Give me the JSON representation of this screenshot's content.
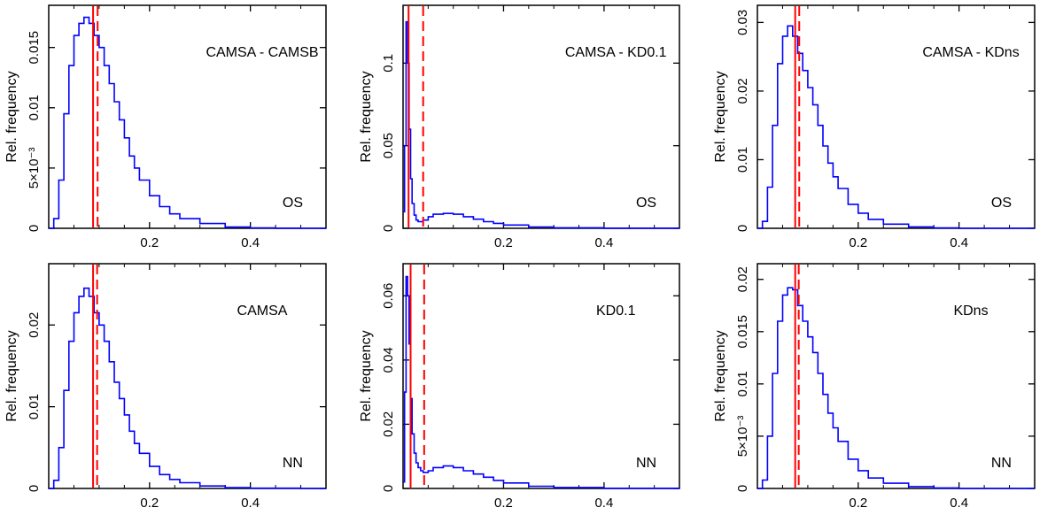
{
  "chart_data": [
    {
      "type": "line",
      "annotation": "CAMSA - CAMSB",
      "corner_label": "OS",
      "ylabel": "Rel. frequency",
      "xlim": [
        0,
        0.55
      ],
      "ylim": [
        0,
        0.0185
      ],
      "xticks": [
        0.2,
        0.4
      ],
      "xtick_labels": [
        "0.2",
        "0.4"
      ],
      "yticks": [
        0,
        0.005,
        0.01,
        0.015
      ],
      "ytick_labels": [
        "0",
        "5×10⁻³",
        "0.01",
        "0.015"
      ],
      "series": [
        {
          "x": [
            0,
            0.01,
            0.02,
            0.03,
            0.04,
            0.05,
            0.06,
            0.07,
            0.08,
            0.09,
            0.1,
            0.11,
            0.12,
            0.13,
            0.14,
            0.15,
            0.16,
            0.17,
            0.18,
            0.2,
            0.22,
            0.24,
            0.26,
            0.3,
            0.35,
            0.4,
            0.45,
            0.5,
            0.55
          ],
          "y": [
            0,
            0.0008,
            0.004,
            0.0095,
            0.0135,
            0.016,
            0.017,
            0.0175,
            0.017,
            0.016,
            0.015,
            0.0135,
            0.012,
            0.0105,
            0.009,
            0.0075,
            0.006,
            0.005,
            0.004,
            0.0027,
            0.0018,
            0.0012,
            0.0008,
            0.0004,
            0.0001,
            4e-05,
            1e-05,
            0,
            0
          ],
          "color": "#0000ff"
        }
      ],
      "vlines": [
        {
          "x": 0.088,
          "style": "solid",
          "color": "#ff0000"
        },
        {
          "x": 0.097,
          "style": "dashed",
          "color": "#ff0000"
        }
      ]
    },
    {
      "type": "line",
      "annotation": "CAMSA - KD0.1",
      "corner_label": "OS",
      "ylabel": "Rel. frequency",
      "xlim": [
        0,
        0.55
      ],
      "ylim": [
        0,
        0.135
      ],
      "xticks": [
        0.2,
        0.4
      ],
      "xtick_labels": [
        "0.2",
        "0.4"
      ],
      "yticks": [
        0,
        0.05,
        0.1
      ],
      "ytick_labels": [
        "0",
        "0.05",
        "0.1"
      ],
      "series": [
        {
          "x": [
            0,
            0.003,
            0.006,
            0.009,
            0.012,
            0.015,
            0.018,
            0.022,
            0.026,
            0.03,
            0.035,
            0.04,
            0.05,
            0.06,
            0.08,
            0.1,
            0.12,
            0.14,
            0.16,
            0.18,
            0.2,
            0.25,
            0.3,
            0.4,
            0.55
          ],
          "y": [
            0.01,
            0.05,
            0.125,
            0.1,
            0.06,
            0.03,
            0.015,
            0.008,
            0.005,
            0.004,
            0.004,
            0.005,
            0.007,
            0.0085,
            0.009,
            0.0085,
            0.007,
            0.0055,
            0.004,
            0.003,
            0.002,
            0.0008,
            0.0003,
            5e-05,
            0
          ],
          "color": "#0000ff"
        }
      ],
      "vlines": [
        {
          "x": 0.011,
          "style": "solid",
          "color": "#ff0000"
        },
        {
          "x": 0.04,
          "style": "dashed",
          "color": "#ff0000"
        }
      ]
    },
    {
      "type": "line",
      "annotation": "CAMSA - KDns",
      "corner_label": "OS",
      "ylabel": "Rel. frequency",
      "xlim": [
        0,
        0.55
      ],
      "ylim": [
        0,
        0.0325
      ],
      "xticks": [
        0.2,
        0.4
      ],
      "xtick_labels": [
        "0.2",
        "0.4"
      ],
      "yticks": [
        0,
        0.01,
        0.02,
        0.03
      ],
      "ytick_labels": [
        "0",
        "0.01",
        "0.02",
        "0.03"
      ],
      "series": [
        {
          "x": [
            0,
            0.01,
            0.02,
            0.03,
            0.04,
            0.05,
            0.06,
            0.07,
            0.08,
            0.09,
            0.1,
            0.11,
            0.12,
            0.13,
            0.14,
            0.15,
            0.16,
            0.18,
            0.2,
            0.22,
            0.25,
            0.3,
            0.35,
            0.4,
            0.55
          ],
          "y": [
            0,
            0.001,
            0.006,
            0.015,
            0.024,
            0.028,
            0.0295,
            0.028,
            0.0255,
            0.023,
            0.0205,
            0.018,
            0.015,
            0.012,
            0.0095,
            0.0075,
            0.0058,
            0.0035,
            0.0022,
            0.0013,
            0.0006,
            0.0002,
            5e-05,
            0,
            0
          ],
          "color": "#0000ff"
        }
      ],
      "vlines": [
        {
          "x": 0.075,
          "style": "solid",
          "color": "#ff0000"
        },
        {
          "x": 0.083,
          "style": "dashed",
          "color": "#ff0000"
        }
      ]
    },
    {
      "type": "line",
      "annotation": "CAMSA",
      "corner_label": "NN",
      "ylabel": "Rel. frequency",
      "xlim": [
        0,
        0.55
      ],
      "ylim": [
        0,
        0.0275
      ],
      "xticks": [
        0.2,
        0.4
      ],
      "xtick_labels": [
        "0.2",
        "0.4"
      ],
      "yticks": [
        0,
        0.01,
        0.02
      ],
      "ytick_labels": [
        "0",
        "0.01",
        "0.02"
      ],
      "series": [
        {
          "x": [
            0,
            0.01,
            0.02,
            0.03,
            0.04,
            0.05,
            0.06,
            0.07,
            0.08,
            0.09,
            0.1,
            0.11,
            0.12,
            0.13,
            0.14,
            0.15,
            0.16,
            0.17,
            0.18,
            0.2,
            0.22,
            0.24,
            0.26,
            0.3,
            0.35,
            0.4,
            0.5,
            0.55
          ],
          "y": [
            0,
            0.001,
            0.005,
            0.012,
            0.018,
            0.0215,
            0.0235,
            0.0245,
            0.0235,
            0.0215,
            0.02,
            0.018,
            0.0155,
            0.013,
            0.011,
            0.009,
            0.007,
            0.0055,
            0.0043,
            0.0027,
            0.0017,
            0.0011,
            0.0007,
            0.0003,
            0.0001,
            3e-05,
            0,
            0
          ],
          "color": "#0000ff"
        }
      ],
      "vlines": [
        {
          "x": 0.088,
          "style": "solid",
          "color": "#ff0000"
        },
        {
          "x": 0.096,
          "style": "dashed",
          "color": "#ff0000"
        }
      ]
    },
    {
      "type": "line",
      "annotation": "KD0.1",
      "corner_label": "NN",
      "ylabel": "Rel. frequency",
      "xlim": [
        0,
        0.55
      ],
      "ylim": [
        0,
        0.07
      ],
      "xticks": [
        0.2,
        0.4
      ],
      "xtick_labels": [
        "0.2",
        "0.4"
      ],
      "yticks": [
        0,
        0.02,
        0.04,
        0.06
      ],
      "ytick_labels": [
        "0",
        "0.02",
        "0.04",
        "0.06"
      ],
      "series": [
        {
          "x": [
            0,
            0.003,
            0.006,
            0.009,
            0.012,
            0.015,
            0.018,
            0.022,
            0.026,
            0.03,
            0.035,
            0.04,
            0.05,
            0.06,
            0.08,
            0.1,
            0.12,
            0.14,
            0.16,
            0.18,
            0.2,
            0.25,
            0.3,
            0.4,
            0.55
          ],
          "y": [
            0.002,
            0.03,
            0.066,
            0.06,
            0.045,
            0.028,
            0.017,
            0.011,
            0.008,
            0.0065,
            0.0055,
            0.005,
            0.0055,
            0.0065,
            0.007,
            0.0065,
            0.0055,
            0.0045,
            0.0035,
            0.0025,
            0.0017,
            0.0007,
            0.0003,
            5e-05,
            0
          ],
          "color": "#0000ff"
        }
      ],
      "vlines": [
        {
          "x": 0.015,
          "style": "solid",
          "color": "#ff0000"
        },
        {
          "x": 0.042,
          "style": "dashed",
          "color": "#ff0000"
        }
      ]
    },
    {
      "type": "line",
      "annotation": "KDns",
      "corner_label": "NN",
      "ylabel": "Rel. frequency",
      "xlim": [
        0,
        0.55
      ],
      "ylim": [
        0,
        0.0215
      ],
      "xticks": [
        0.2,
        0.4
      ],
      "xtick_labels": [
        "0.2",
        "0.4"
      ],
      "yticks": [
        0,
        0.005,
        0.01,
        0.015,
        0.02
      ],
      "ytick_labels": [
        "0",
        "5×10⁻³",
        "0.01",
        "0.015",
        "0.02"
      ],
      "series": [
        {
          "x": [
            0,
            0.01,
            0.02,
            0.03,
            0.04,
            0.05,
            0.06,
            0.07,
            0.08,
            0.09,
            0.1,
            0.11,
            0.12,
            0.13,
            0.14,
            0.15,
            0.16,
            0.18,
            0.2,
            0.22,
            0.25,
            0.3,
            0.35,
            0.4,
            0.55
          ],
          "y": [
            0,
            0.0008,
            0.005,
            0.011,
            0.016,
            0.0185,
            0.0192,
            0.019,
            0.0175,
            0.016,
            0.0145,
            0.013,
            0.011,
            0.009,
            0.0072,
            0.0058,
            0.0045,
            0.0028,
            0.0017,
            0.001,
            0.0005,
            0.00018,
            5e-05,
            0,
            0
          ],
          "color": "#0000ff"
        }
      ],
      "vlines": [
        {
          "x": 0.075,
          "style": "solid",
          "color": "#ff0000"
        },
        {
          "x": 0.082,
          "style": "dashed",
          "color": "#ff0000"
        }
      ]
    }
  ]
}
